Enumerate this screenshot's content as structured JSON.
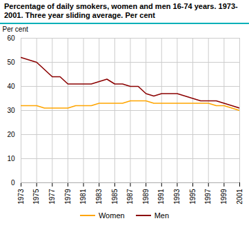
{
  "chart_data": {
    "type": "line",
    "title": "Percentage of daily smokers, women and men 16-74 years. 1973-2001. Three year sliding average. Per cent",
    "y_label": "Per cent",
    "x": [
      1973,
      1974,
      1975,
      1976,
      1977,
      1978,
      1979,
      1980,
      1981,
      1982,
      1983,
      1984,
      1985,
      1986,
      1987,
      1988,
      1989,
      1990,
      1991,
      1992,
      1993,
      1994,
      1995,
      1996,
      1997,
      1998,
      1999,
      2000,
      2001
    ],
    "series": [
      {
        "name": "Women",
        "color": "#FFA500",
        "values": [
          32,
          32,
          32,
          31,
          31,
          31,
          31,
          32,
          32,
          32,
          33,
          33,
          33,
          33,
          34,
          34,
          34,
          33,
          33,
          33,
          33,
          33,
          33,
          33,
          33,
          32,
          32,
          31,
          30
        ]
      },
      {
        "name": "Men",
        "color": "#8B0000",
        "values": [
          52,
          51,
          50,
          47,
          44,
          44,
          41,
          41,
          41,
          41,
          42,
          43,
          41,
          41,
          40,
          40,
          37,
          36,
          37,
          37,
          37,
          36,
          35,
          34,
          34,
          34,
          33,
          32,
          31
        ]
      }
    ],
    "xlim": [
      1973,
      2001
    ],
    "xticks": [
      1973,
      1975,
      1977,
      1979,
      1981,
      1983,
      1985,
      1987,
      1989,
      1991,
      1993,
      1995,
      1997,
      1999,
      2001
    ],
    "ylim": [
      0,
      60
    ],
    "yticks": [
      0,
      10,
      20,
      30,
      40,
      50,
      60
    ],
    "grid": true,
    "legend": "bottom"
  }
}
